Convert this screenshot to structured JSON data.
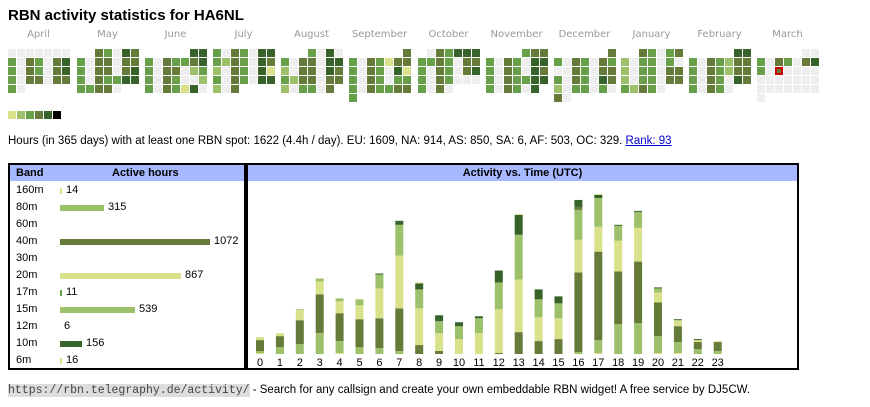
{
  "title": "RBN activity statistics for HA6NL",
  "colors": {
    "empty": "#eeeeee",
    "levels": [
      "#eeeeee",
      "#d9e18a",
      "#9dc06a",
      "#68a04a",
      "#667a3a",
      "#37632a",
      "#000000"
    ],
    "header_bg": "#a6b8ff",
    "highlight": "#cc0000"
  },
  "calendar": {
    "months": [
      {
        "name": "April",
        "rows": [
          [
            0,
            0,
            0,
            0,
            0,
            0,
            0
          ],
          [
            3,
            0,
            4,
            3,
            0,
            4,
            5
          ],
          [
            3,
            0,
            4,
            3,
            0,
            4,
            5
          ],
          [
            3,
            0,
            4,
            4,
            0,
            4,
            4
          ],
          [
            3,
            0,
            null,
            null,
            null,
            null,
            null
          ]
        ]
      },
      {
        "name": "May",
        "rows": [
          [
            null,
            null,
            4,
            3,
            0,
            5,
            4
          ],
          [
            3,
            0,
            4,
            4,
            0,
            4,
            4
          ],
          [
            3,
            0,
            4,
            4,
            0,
            4,
            5
          ],
          [
            3,
            0,
            4,
            3,
            3,
            5,
            5
          ],
          [
            3,
            3,
            4,
            4,
            0,
            null,
            null
          ]
        ]
      },
      {
        "name": "June",
        "rows": [
          [
            null,
            null,
            null,
            null,
            null,
            5,
            5
          ],
          [
            3,
            0,
            4,
            3,
            3,
            4,
            5
          ],
          [
            3,
            0,
            4,
            4,
            0,
            2,
            3
          ],
          [
            3,
            0,
            4,
            3,
            0,
            0,
            2
          ],
          [
            3,
            0,
            4,
            3,
            1,
            5,
            0
          ]
        ]
      },
      {
        "name": "July",
        "rows": [
          [
            3,
            0,
            4,
            3,
            0,
            5,
            5
          ],
          [
            3,
            2,
            4,
            3,
            0,
            5,
            4
          ],
          [
            2,
            0,
            4,
            3,
            0,
            5,
            1
          ],
          [
            3,
            0,
            4,
            3,
            0,
            5,
            5
          ],
          [
            2,
            0,
            4,
            null,
            null,
            null,
            null
          ]
        ]
      },
      {
        "name": "August",
        "rows": [
          [
            null,
            null,
            null,
            3,
            0,
            5,
            0
          ],
          [
            3,
            0,
            4,
            4,
            0,
            5,
            5
          ],
          [
            2,
            0,
            4,
            4,
            0,
            5,
            4
          ],
          [
            3,
            2,
            4,
            4,
            0,
            4,
            4
          ],
          [
            2,
            0,
            3,
            3,
            0,
            4,
            null
          ]
        ]
      },
      {
        "name": "September",
        "rows": [
          [
            null,
            null,
            null,
            null,
            null,
            null,
            4
          ],
          [
            3,
            0,
            4,
            3,
            1,
            4,
            4
          ],
          [
            3,
            0,
            4,
            3,
            0,
            5,
            1
          ],
          [
            3,
            0,
            4,
            3,
            0,
            3,
            3
          ],
          [
            3,
            0,
            4,
            3,
            3,
            4,
            4
          ],
          [
            3,
            null,
            null,
            null,
            null,
            null,
            null
          ]
        ]
      },
      {
        "name": "October",
        "rows": [
          [
            null,
            0,
            4,
            3,
            5,
            5,
            5
          ],
          [
            3,
            3,
            4,
            3,
            0,
            4,
            4
          ],
          [
            3,
            0,
            4,
            3,
            0,
            4,
            5
          ],
          [
            3,
            0,
            4,
            3,
            0,
            0,
            0
          ],
          [
            3,
            0,
            4,
            0,
            null,
            null,
            null
          ]
        ]
      },
      {
        "name": "November",
        "rows": [
          [
            null,
            null,
            null,
            null,
            3,
            4,
            4
          ],
          [
            3,
            0,
            4,
            3,
            0,
            5,
            5
          ],
          [
            3,
            0,
            4,
            3,
            0,
            5,
            4
          ],
          [
            3,
            0,
            4,
            3,
            3,
            5,
            5
          ],
          [
            3,
            0,
            4,
            3,
            0,
            5,
            null
          ]
        ]
      },
      {
        "name": "December",
        "rows": [
          [
            null,
            null,
            null,
            null,
            null,
            null,
            4
          ],
          [
            3,
            0,
            4,
            3,
            0,
            4,
            3
          ],
          [
            0,
            0,
            4,
            3,
            0,
            4,
            4
          ],
          [
            3,
            0,
            4,
            3,
            0,
            5,
            4
          ],
          [
            2,
            0,
            3,
            3,
            0,
            3,
            0
          ],
          [
            4,
            0,
            null,
            null,
            null,
            null,
            null
          ]
        ]
      },
      {
        "name": "January",
        "rows": [
          [
            null,
            null,
            4,
            3,
            0,
            3,
            4
          ],
          [
            2,
            0,
            3,
            3,
            0,
            3,
            0
          ],
          [
            2,
            0,
            3,
            3,
            0,
            4,
            4
          ],
          [
            2,
            0,
            3,
            3,
            0,
            4,
            4
          ],
          [
            3,
            2,
            4,
            3,
            0,
            null,
            null
          ]
        ]
      },
      {
        "name": "February",
        "rows": [
          [
            null,
            null,
            null,
            null,
            null,
            5,
            5
          ],
          [
            3,
            0,
            4,
            3,
            2,
            4,
            4
          ],
          [
            3,
            0,
            4,
            3,
            2,
            4,
            4
          ],
          [
            3,
            0,
            4,
            3,
            0,
            5,
            4
          ],
          [
            3,
            0,
            4,
            3,
            0,
            null,
            null
          ]
        ]
      },
      {
        "name": "March",
        "rows": [
          [
            null,
            null,
            null,
            null,
            null,
            0,
            0
          ],
          [
            3,
            0,
            4,
            3,
            0,
            4,
            5
          ],
          [
            3,
            0,
            4,
            0,
            0,
            0,
            0
          ],
          [
            0,
            0,
            0,
            0,
            0,
            0,
            0
          ],
          [
            0,
            0,
            0,
            0,
            0,
            0,
            0
          ],
          [
            0,
            null,
            null,
            null,
            null,
            null,
            null
          ]
        ],
        "highlight": [
          2,
          2
        ]
      }
    ]
  },
  "summary": {
    "text": "Hours (in 365 days) with at least one RBN spot: 1622 (4.4h / day). EU: 1609, NA: 914, AS: 850, SA: 6, AF: 503, OC: 329. ",
    "rank_link": "Rank: 93"
  },
  "bands_table": {
    "header_band": "Band",
    "header_hours": "Active hours",
    "max": 1072,
    "rows": [
      {
        "band": "160m",
        "hours": 14,
        "color": "#d9e18a"
      },
      {
        "band": "80m",
        "hours": 315,
        "color": "#9dc06a"
      },
      {
        "band": "60m",
        "hours": null,
        "color": "#68a04a"
      },
      {
        "band": "40m",
        "hours": 1072,
        "color": "#667a3a"
      },
      {
        "band": "30m",
        "hours": null,
        "color": "#37632a"
      },
      {
        "band": "20m",
        "hours": 867,
        "color": "#d9e18a"
      },
      {
        "band": "17m",
        "hours": 11,
        "color": "#68a04a"
      },
      {
        "band": "15m",
        "hours": 539,
        "color": "#9dc06a"
      },
      {
        "band": "12m",
        "hours": 6,
        "color": "#68a04a"
      },
      {
        "band": "10m",
        "hours": 156,
        "color": "#37632a"
      },
      {
        "band": "6m",
        "hours": 16,
        "color": "#d9e18a"
      }
    ]
  },
  "chart_data": {
    "type": "bar",
    "title": "Activity vs. Time (UTC)",
    "xlabel": "",
    "ylabel": "",
    "stacked": true,
    "categories": [
      "0",
      "1",
      "2",
      "3",
      "4",
      "5",
      "6",
      "7",
      "8",
      "9",
      "10",
      "11",
      "12",
      "13",
      "14",
      "15",
      "16",
      "17",
      "18",
      "19",
      "20",
      "21",
      "22",
      "23"
    ],
    "ylim": [
      0,
      170
    ],
    "grid": false,
    "segment_colors": {
      "yellow": "#d9e18a",
      "lightgreen": "#9dc06a",
      "olive": "#667a3a",
      "dark": "#37632a"
    },
    "stacks": [
      [
        [
          "yellow",
          1
        ],
        [
          "lightgreen",
          2
        ],
        [
          "olive",
          11
        ],
        [
          "yellow",
          3
        ]
      ],
      [
        [
          "lightgreen",
          7
        ],
        [
          "olive",
          11
        ],
        [
          "yellow",
          3
        ]
      ],
      [
        [
          "lightgreen",
          10
        ],
        [
          "olive",
          24
        ],
        [
          "yellow",
          10
        ],
        [
          "lightgreen",
          1
        ]
      ],
      [
        [
          "lightgreen",
          21
        ],
        [
          "olive",
          39
        ],
        [
          "yellow",
          13
        ],
        [
          "lightgreen",
          3
        ]
      ],
      [
        [
          "yellow",
          1
        ],
        [
          "lightgreen",
          12
        ],
        [
          "olive",
          28
        ],
        [
          "yellow",
          12
        ],
        [
          "lightgreen",
          3
        ]
      ],
      [
        [
          "lightgreen",
          7
        ],
        [
          "olive",
          28
        ],
        [
          "yellow",
          14
        ],
        [
          "lightgreen",
          6
        ]
      ],
      [
        [
          "lightgreen",
          6
        ],
        [
          "olive",
          30
        ],
        [
          "yellow",
          30
        ],
        [
          "lightgreen",
          14
        ],
        [
          "dark",
          1
        ]
      ],
      [
        [
          "lightgreen",
          3
        ],
        [
          "olive",
          43
        ],
        [
          "yellow",
          53
        ],
        [
          "lightgreen",
          31
        ],
        [
          "dark",
          4
        ]
      ],
      [
        [
          "olive",
          9
        ],
        [
          "yellow",
          37
        ],
        [
          "lightgreen",
          19
        ],
        [
          "dark",
          6
        ],
        [
          "yellow",
          1
        ]
      ],
      [
        [
          "olive",
          3
        ],
        [
          "yellow",
          18
        ],
        [
          "lightgreen",
          12
        ],
        [
          "dark",
          6
        ]
      ],
      [
        [
          "yellow",
          15
        ],
        [
          "lightgreen",
          13
        ],
        [
          "dark",
          4
        ]
      ],
      [
        [
          "yellow",
          21
        ],
        [
          "lightgreen",
          15
        ],
        [
          "dark",
          2
        ]
      ],
      [
        [
          "olive",
          1
        ],
        [
          "yellow",
          44
        ],
        [
          "lightgreen",
          27
        ],
        [
          "dark",
          12
        ]
      ],
      [
        [
          "olive",
          22
        ],
        [
          "yellow",
          53
        ],
        [
          "lightgreen",
          45
        ],
        [
          "dark",
          20
        ],
        [
          "yellow",
          1
        ]
      ],
      [
        [
          "olive",
          13
        ],
        [
          "yellow",
          24
        ],
        [
          "lightgreen",
          18
        ],
        [
          "dark",
          10
        ]
      ],
      [
        [
          "olive",
          15
        ],
        [
          "yellow",
          21
        ],
        [
          "lightgreen",
          15
        ],
        [
          "dark",
          7
        ]
      ],
      [
        [
          "lightgreen",
          2
        ],
        [
          "olive",
          80
        ],
        [
          "yellow",
          33
        ],
        [
          "lightgreen",
          30
        ],
        [
          "olive",
          3
        ],
        [
          "dark",
          7
        ]
      ],
      [
        [
          "yellow",
          1
        ],
        [
          "lightgreen",
          13
        ],
        [
          "olive",
          89
        ],
        [
          "yellow",
          25
        ],
        [
          "lightgreen",
          29
        ],
        [
          "dark",
          3
        ],
        [
          "yellow",
          1
        ]
      ],
      [
        [
          "lightgreen",
          30
        ],
        [
          "olive",
          53
        ],
        [
          "yellow",
          31
        ],
        [
          "lightgreen",
          15
        ],
        [
          "dark",
          1
        ]
      ],
      [
        [
          "lightgreen",
          31
        ],
        [
          "olive",
          62
        ],
        [
          "yellow",
          34
        ],
        [
          "lightgreen",
          16
        ],
        [
          "dark",
          1
        ]
      ],
      [
        [
          "yellow",
          1
        ],
        [
          "lightgreen",
          17
        ],
        [
          "olive",
          34
        ],
        [
          "yellow",
          10
        ],
        [
          "lightgreen",
          4
        ],
        [
          "dark",
          1
        ]
      ],
      [
        [
          "yellow",
          1
        ],
        [
          "lightgreen",
          11
        ],
        [
          "olive",
          16
        ],
        [
          "yellow",
          6
        ],
        [
          "dark",
          1
        ]
      ],
      [
        [
          "lightgreen",
          5
        ],
        [
          "olive",
          7
        ],
        [
          "yellow",
          2
        ],
        [
          "dark",
          1
        ]
      ],
      [
        [
          "lightgreen",
          3
        ],
        [
          "olive",
          9
        ],
        [
          "yellow",
          1
        ]
      ]
    ]
  },
  "footer": {
    "url": "https://rbn.telegraphy.de/activity/",
    "text": " - Search for any callsign and create your own embeddable RBN widget! A free service by DJ5CW."
  }
}
